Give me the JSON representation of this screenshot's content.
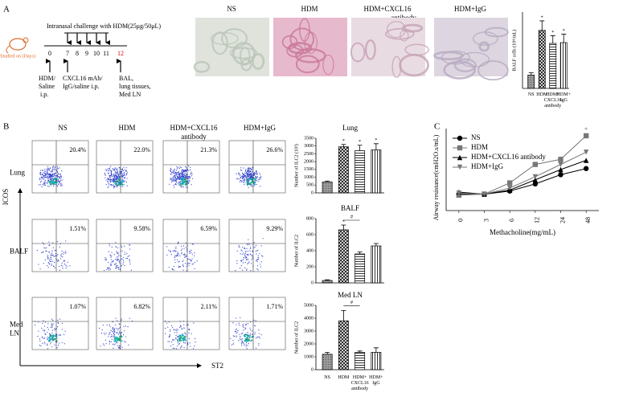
{
  "panels": {
    "a": "A",
    "b": "B",
    "c": "C"
  },
  "timeline": {
    "challenge": "Intranasal challenge with HDM(25μg/50μL)",
    "studied": "Studied on (Days)",
    "days": [
      "0",
      "7",
      "8",
      "9",
      "10",
      "11",
      "12"
    ],
    "steps": [
      "HDM/ Saline i.p.",
      "CXCL16 mAb/ IgG/saline i.p.",
      "BAL, lung tissues, Med LN"
    ]
  },
  "micrographs": [
    "NS",
    "HDM",
    "HDM+CXCL16 antibody",
    "HDM+IgG"
  ],
  "flow": {
    "columns": [
      "NS",
      "HDM",
      "HDM+CXCL16 antibody",
      "HDM+IgG"
    ],
    "rows": [
      {
        "label": "Lung",
        "percents": [
          "20.4%",
          "22.0%",
          "21.3%",
          "26.6%"
        ]
      },
      {
        "label": "BALF",
        "percents": [
          "1.51%",
          "9.58%",
          "6.59%",
          "9.29%"
        ]
      },
      {
        "label": "Med LN",
        "percents": [
          "1.07%",
          "6.82%",
          "2.11%",
          "1.71%"
        ]
      }
    ],
    "y_axis": "ICOS",
    "x_axis": "ST2"
  },
  "chart_data": [
    {
      "type": "bar",
      "ylabel": "BALF cells (10⁴/mL)",
      "categories": [
        "NS",
        "HDM",
        "HDM+ CXCL16 antibody",
        "HDM+ IgG"
      ],
      "values": [
        35,
        152,
        118,
        120
      ],
      "errors": [
        6,
        25,
        20,
        22
      ],
      "markers": [
        null,
        "*",
        "*",
        "*"
      ],
      "ylim": [
        0,
        200
      ]
    },
    {
      "type": "bar",
      "title": "Lung",
      "ylabel": "Number of ILC2 (10³)",
      "values": [
        700,
        2950,
        2700,
        2750
      ],
      "errors": [
        60,
        150,
        350,
        400
      ],
      "markers": [
        null,
        "*",
        "*",
        "*"
      ],
      "ylim": [
        0,
        3500
      ],
      "yticks": [
        0,
        500,
        1000,
        1500,
        2000,
        2500,
        3000,
        3500
      ]
    },
    {
      "type": "bar",
      "title": "BALF",
      "ylabel": "Number of ILC2",
      "values": [
        30,
        660,
        360,
        460
      ],
      "errors": [
        8,
        60,
        25,
        30
      ],
      "markers": [
        null,
        "*",
        null,
        null
      ],
      "comparisons": [
        {
          "text": "#",
          "between": [
            1,
            2
          ]
        }
      ],
      "ylim": [
        0,
        800
      ],
      "yticks": [
        0,
        200,
        400,
        600,
        800
      ]
    },
    {
      "type": "bar",
      "title": "Med LN",
      "ylabel": "Number of ILC2",
      "categories": [
        "NS",
        "HDM",
        "HDM+ CXCL16 antibody",
        "HDM+ IgG"
      ],
      "values": [
        1200,
        3800,
        1350,
        1350
      ],
      "errors": [
        150,
        800,
        100,
        350
      ],
      "comparisons": [
        {
          "text": "#",
          "between": [
            1,
            2
          ]
        }
      ],
      "ylim": [
        0,
        5000
      ],
      "yticks": [
        0,
        1000,
        2000,
        3000,
        4000,
        5000
      ]
    },
    {
      "type": "line",
      "xlabel": "Methacholine(mg/mL)",
      "ylabel": "Airway resistance(cmH2O.s/mL)",
      "categories": [
        "0",
        "3",
        "6",
        "12",
        "24",
        "48"
      ],
      "markers": [
        null,
        null,
        null,
        "*",
        null,
        "*"
      ],
      "ylim": [
        0,
        8
      ],
      "series": [
        {
          "name": "NS",
          "color": "#000000",
          "marker": "circle",
          "values": [
            1.6,
            1.6,
            1.9,
            2.6,
            3.5,
            4.1
          ]
        },
        {
          "name": "HDM",
          "color": "#777777",
          "marker": "square",
          "values": [
            1.5,
            1.6,
            2.7,
            4.5,
            5.0,
            7.3
          ]
        },
        {
          "name": "HDM+CXCL16 antibody",
          "color": "#000000",
          "marker": "triangle",
          "values": [
            1.8,
            1.6,
            2.0,
            3.0,
            4.0,
            4.9
          ]
        },
        {
          "name": "HDM+IgG",
          "color": "#777777",
          "marker": "down-triangle",
          "values": [
            1.7,
            1.6,
            2.2,
            3.3,
            4.5,
            5.7
          ]
        }
      ]
    }
  ]
}
